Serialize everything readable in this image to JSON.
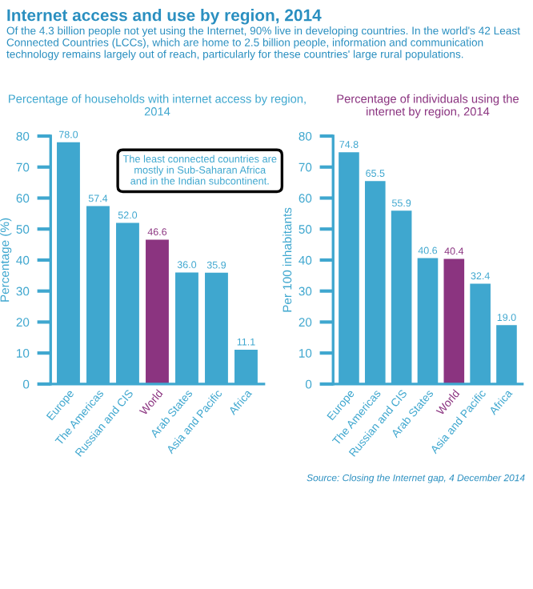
{
  "chart_data": [
    {
      "type": "other",
      "title": "Internet access and use by region, 2014",
      "subtitle": "Of the 4.3 billion people not yet using the Internet, 90% live in developing countries. In the world's 42 Least Connected Countries (LCCs), which are home to 2.5 billion people, information and communication technology remains largely out of reach, particularly for these countries' large rural populations.",
      "annotations": [
        "Source: Closing the Internet gap, 4 December 2014"
      ]
    },
    {
      "type": "bar",
      "title": "Percentage of households with internet access by region, 2014",
      "ylabel": "Percentage (%)",
      "categories": [
        "Europe",
        "The Americas",
        "Russian and CIS",
        "World",
        "Arab States",
        "Asia and Pacific",
        "Africa"
      ],
      "values": [
        78.0,
        57.4,
        52.0,
        46.6,
        36.0,
        35.9,
        11.1
      ],
      "colors": [
        "#3fa7cf",
        "#3fa7cf",
        "#3fa7cf",
        "#8b3480",
        "#3fa7cf",
        "#3fa7cf",
        "#3fa7cf"
      ],
      "ylim": [
        0,
        80
      ],
      "yticks": [
        0,
        10,
        20,
        30,
        40,
        50,
        60,
        70,
        80
      ],
      "value_labels": [
        "78.0",
        "57.4",
        "52.0",
        "46.6",
        "36.0",
        "35.9",
        "11.1"
      ],
      "grid": false,
      "annotations": [
        "The least connected countries are\nmostly in Sub-Saharan Africa\nand in the Indian subcontinent."
      ]
    },
    {
      "type": "bar",
      "title": "Percentage of individuals using the internet by region, 2014",
      "ylabel": "Per 100 inhabitants",
      "categories": [
        "Europe",
        "The Americas",
        "Russian and CIS",
        "Arab States",
        "World",
        "Asia and Pacific",
        "Africa"
      ],
      "values": [
        74.8,
        65.5,
        55.9,
        40.6,
        40.4,
        32.4,
        19.0
      ],
      "colors": [
        "#3fa7cf",
        "#3fa7cf",
        "#3fa7cf",
        "#3fa7cf",
        "#8b3480",
        "#3fa7cf",
        "#3fa7cf"
      ],
      "ylim": [
        0,
        80
      ],
      "yticks": [
        0,
        10,
        20,
        30,
        40,
        50,
        60,
        70,
        80
      ],
      "value_labels": [
        "74.8",
        "65.5",
        "55.9",
        "40.6",
        "40.4",
        "32.4",
        "19.0"
      ],
      "grid": false
    }
  ]
}
